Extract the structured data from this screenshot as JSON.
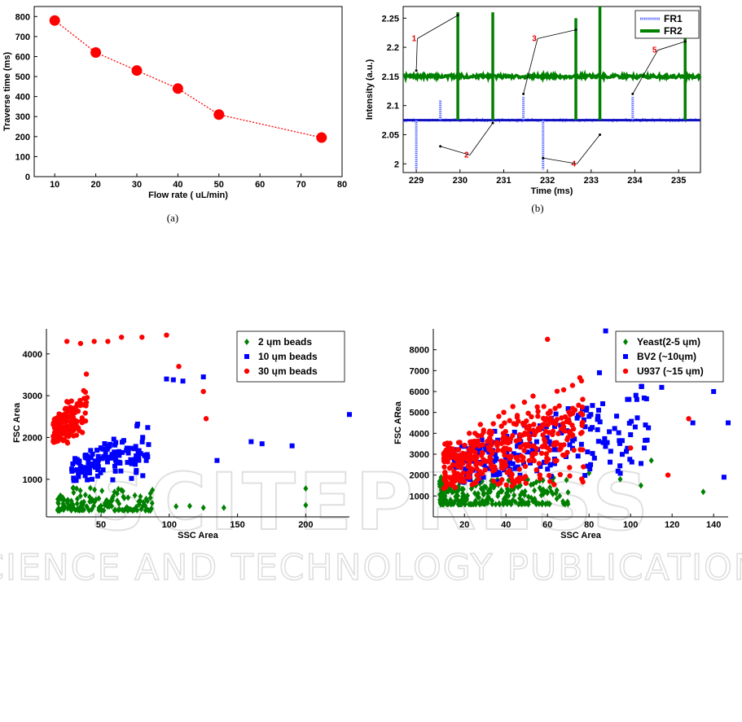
{
  "watermark": {
    "line1": "SCITEPRESS",
    "line2": "SCIENCE AND TECHNOLOGY PUBLICATIONS"
  },
  "chart_data": [
    {
      "id": "a",
      "type": "line",
      "caption": "(a)",
      "xlabel": "Flow rate ( uL/min)",
      "ylabel": "Traverse time (ms)",
      "xlim": [
        5,
        80
      ],
      "ylim": [
        0,
        850
      ],
      "xticks": [
        10,
        20,
        30,
        40,
        50,
        60,
        70,
        80
      ],
      "yticks": [
        0,
        100,
        200,
        300,
        400,
        500,
        600,
        700,
        800
      ],
      "grid": false,
      "color": "#ff0000",
      "x": [
        10,
        20,
        30,
        40,
        50,
        75
      ],
      "y": [
        780,
        620,
        530,
        440,
        310,
        195
      ]
    },
    {
      "id": "b",
      "type": "line",
      "caption": "(b)",
      "xlabel": "Time (ms)",
      "ylabel": "Intensity (a.u.)",
      "xlim": [
        228.7,
        235.5
      ],
      "ylim": [
        1.985,
        2.27
      ],
      "xticks": [
        229,
        230,
        231,
        232,
        233,
        234,
        235
      ],
      "yticks": [
        2,
        2.05,
        2.1,
        2.15,
        2.2,
        2.25
      ],
      "ytick_labels": [
        "2",
        "2.05",
        "2.1",
        "2.15",
        "2.2",
        "2.25"
      ],
      "legend_position": "top-right",
      "series": [
        {
          "name": "FR1",
          "color": "#6070ff",
          "baseline": 2.075,
          "dips": [
            {
              "x": 229.0,
              "y": 1.99
            },
            {
              "x": 229.55,
              "y": 2.11
            },
            {
              "x": 231.45,
              "y": 2.115
            },
            {
              "x": 231.9,
              "y": 1.99
            },
            {
              "x": 233.95,
              "y": 2.115
            }
          ]
        },
        {
          "name": "FR2",
          "color": "#008000",
          "baseline": 2.15,
          "spikes": [
            {
              "x": 229.95,
              "y": 2.26
            },
            {
              "x": 230.75,
              "y": 2.26
            },
            {
              "x": 232.65,
              "y": 2.25
            },
            {
              "x": 233.2,
              "y": 2.27
            },
            {
              "x": 235.15,
              "y": 2.24
            }
          ]
        }
      ],
      "annotations": [
        {
          "label": "1",
          "x": 228.95,
          "y": 2.215
        },
        {
          "label": "2",
          "x": 230.15,
          "y": 2.015
        },
        {
          "label": "3",
          "x": 231.7,
          "y": 2.215
        },
        {
          "label": "4",
          "x": 232.6,
          "y": 2.0
        },
        {
          "label": "5",
          "x": 234.45,
          "y": 2.195
        }
      ]
    },
    {
      "id": "c",
      "type": "scatter",
      "xlabel": "SSC Area",
      "ylabel": "FSC Area",
      "xlim": [
        10,
        232
      ],
      "ylim": [
        100,
        4600
      ],
      "xticks": [
        50,
        100,
        150,
        200
      ],
      "yticks": [
        1000,
        2000,
        3000,
        4000
      ],
      "legend_position": "top-right",
      "series": [
        {
          "name": "2 ųm beads",
          "color": "#008000",
          "marker": "diamond",
          "generated": {
            "count": 140,
            "xmin": 18,
            "xmax": 88,
            "ymin": 250,
            "ymax": 800
          },
          "extra": [
            [
              105,
              350
            ],
            [
              115,
              360
            ],
            [
              125,
              320
            ],
            [
              140,
              320
            ],
            [
              200,
              780
            ],
            [
              200,
              380
            ]
          ]
        },
        {
          "name": "10 ųm beads",
          "color": "#0000ff",
          "marker": "square",
          "generated": {
            "count": 130,
            "xmin": 28,
            "xmax": 85,
            "ymin": 950,
            "ymax": 2500
          },
          "extra": [
            [
              98,
              3400
            ],
            [
              103,
              3380
            ],
            [
              110,
              3350
            ],
            [
              125,
              3450
            ],
            [
              135,
              1450
            ],
            [
              160,
              1900
            ],
            [
              168,
              1850
            ],
            [
              190,
              1800
            ],
            [
              232,
              2550
            ]
          ]
        },
        {
          "name": "30 ųm beads",
          "color": "#ff0000",
          "marker": "circle",
          "generated": {
            "count": 150,
            "xmin": 15,
            "xmax": 40,
            "ymin": 1800,
            "ymax": 3600
          },
          "extra": [
            [
              25,
              4300
            ],
            [
              35,
              4250
            ],
            [
              45,
              4300
            ],
            [
              55,
              4300
            ],
            [
              65,
              4400
            ],
            [
              80,
              4400
            ],
            [
              98,
              4450
            ],
            [
              107,
              3700
            ],
            [
              125,
              3100
            ],
            [
              127,
              2450
            ]
          ]
        }
      ]
    },
    {
      "id": "d",
      "type": "scatter",
      "xlabel": "SSC Area",
      "ylabel": "FSC ARea",
      "xlim": [
        5,
        147
      ],
      "ylim": [
        0,
        9000
      ],
      "xticks": [
        20,
        40,
        60,
        80,
        100,
        120,
        140
      ],
      "yticks": [
        1000,
        2000,
        3000,
        4000,
        5000,
        6000,
        7000,
        8000
      ],
      "legend_position": "top-right",
      "series": [
        {
          "name": "Yeast(2-5 ųm)",
          "color": "#008000",
          "marker": "diamond",
          "generated": {
            "count": 260,
            "xmin": 8,
            "xmax": 70,
            "ymin": 600,
            "ymax": 1900
          },
          "extra": [
            [
              80,
              2100
            ],
            [
              95,
              1800
            ],
            [
              105,
              1500
            ],
            [
              110,
              2700
            ],
            [
              135,
              1200
            ]
          ]
        },
        {
          "name": "BV2 (~10ųm)",
          "color": "#0000ff",
          "marker": "square",
          "generated": {
            "count": 220,
            "xmin": 15,
            "xmax": 110,
            "ymin": 1500,
            "ymax": 7000
          },
          "extra": [
            [
              88,
              8900
            ],
            [
              85,
              6900
            ],
            [
              115,
              6200
            ],
            [
              130,
              4500
            ],
            [
              140,
              6000
            ],
            [
              145,
              1900
            ],
            [
              147,
              4500
            ]
          ]
        },
        {
          "name": "U937 (~15 ųm)",
          "color": "#ff0000",
          "marker": "circle",
          "generated": {
            "count": 420,
            "xmin": 10,
            "xmax": 78,
            "ymin": 1300,
            "ymax": 7500
          },
          "extra": [
            [
              60,
              8500
            ],
            [
              100,
              3300
            ],
            [
              118,
              2000
            ],
            [
              128,
              4700
            ]
          ]
        }
      ]
    }
  ]
}
